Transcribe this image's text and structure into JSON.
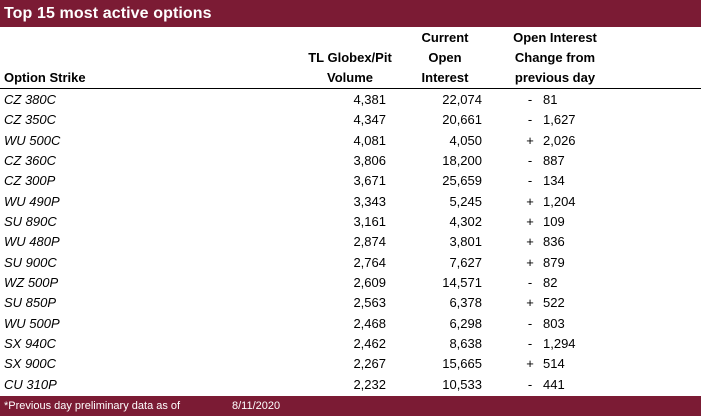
{
  "title": "Top 15 most active options",
  "headers": {
    "strike": "Option Strike",
    "volume_l1": "TL Globex/Pit",
    "volume_l2": "Volume",
    "oi_l1": "Current",
    "oi_l2": "Open",
    "oi_l3": "Interest",
    "chg_l1": "Open Interest",
    "chg_l2": "Change from",
    "chg_l3": "previous day"
  },
  "rows": [
    {
      "strike": "CZ 380C",
      "volume": "4,381",
      "oi": "22,074",
      "sign": "-",
      "change": "81"
    },
    {
      "strike": "CZ 350C",
      "volume": "4,347",
      "oi": "20,661",
      "sign": "-",
      "change": "1,627"
    },
    {
      "strike": "WU 500C",
      "volume": "4,081",
      "oi": "4,050",
      "sign": "+",
      "change": "2,026"
    },
    {
      "strike": "CZ 360C",
      "volume": "3,806",
      "oi": "18,200",
      "sign": "-",
      "change": "887"
    },
    {
      "strike": "CZ 300P",
      "volume": "3,671",
      "oi": "25,659",
      "sign": "-",
      "change": "134"
    },
    {
      "strike": "WU 490P",
      "volume": "3,343",
      "oi": "5,245",
      "sign": "+",
      "change": "1,204"
    },
    {
      "strike": "SU 890C",
      "volume": "3,161",
      "oi": "4,302",
      "sign": "+",
      "change": "109"
    },
    {
      "strike": "WU 480P",
      "volume": "2,874",
      "oi": "3,801",
      "sign": "+",
      "change": "836"
    },
    {
      "strike": "SU 900C",
      "volume": "2,764",
      "oi": "7,627",
      "sign": "+",
      "change": "879"
    },
    {
      "strike": "WZ 500P",
      "volume": "2,609",
      "oi": "14,571",
      "sign": "-",
      "change": "82"
    },
    {
      "strike": "SU 850P",
      "volume": "2,563",
      "oi": "6,378",
      "sign": "+",
      "change": "522"
    },
    {
      "strike": "WU 500P",
      "volume": "2,468",
      "oi": "6,298",
      "sign": "-",
      "change": "803"
    },
    {
      "strike": "SX 940C",
      "volume": "2,462",
      "oi": "8,638",
      "sign": "-",
      "change": "1,294"
    },
    {
      "strike": "SX 900C",
      "volume": "2,267",
      "oi": "15,665",
      "sign": "+",
      "change": "514"
    },
    {
      "strike": "CU 310P",
      "volume": "2,232",
      "oi": "10,533",
      "sign": "-",
      "change": "441"
    }
  ],
  "footer": {
    "note": "*Previous day preliminary data as of",
    "date": "8/11/2020"
  },
  "colors": {
    "band": "#7b1b34"
  }
}
